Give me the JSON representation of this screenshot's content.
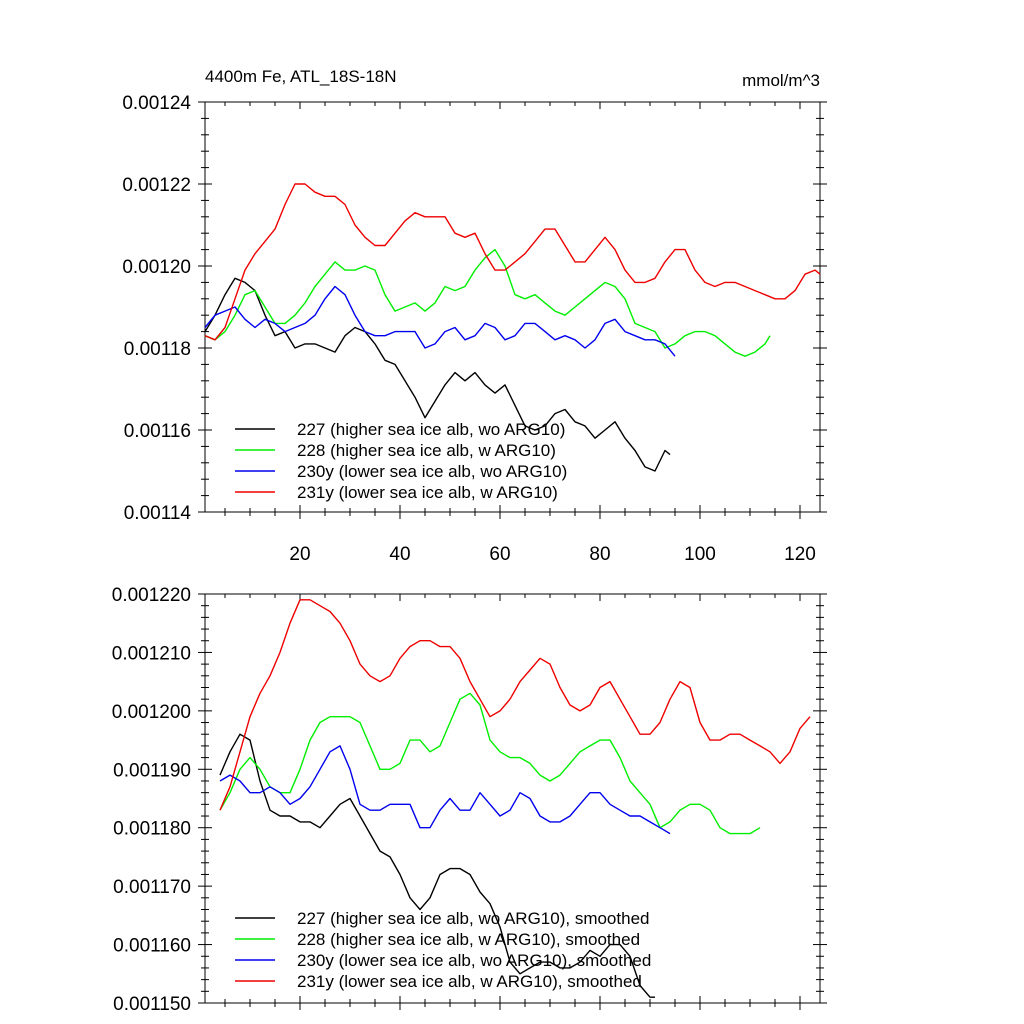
{
  "chart_data": [
    {
      "type": "line",
      "title": "4400m Fe, ATL_18S-18N",
      "units": "mmol/m^3",
      "xlabel": "",
      "ylabel": "",
      "xlim": [
        1,
        124
      ],
      "ylim": [
        0.00114,
        0.00124
      ],
      "x_ticks": [
        20,
        40,
        60,
        80,
        100,
        120
      ],
      "y_ticks": [
        "0.00114",
        "0.00116",
        "0.00118",
        "0.00120",
        "0.00122",
        "0.00124"
      ],
      "legend_position": "bottom-left",
      "series": [
        {
          "name": "227 (higher sea ice alb, wo ARG10)",
          "color": "#000000",
          "x": [
            1,
            3,
            5,
            7,
            9,
            11,
            13,
            15,
            17,
            19,
            21,
            23,
            25,
            27,
            29,
            31,
            33,
            35,
            37,
            39,
            41,
            43,
            45,
            47,
            49,
            51,
            53,
            55,
            57,
            59,
            61,
            63,
            65,
            67,
            69,
            71,
            73,
            75,
            77,
            79,
            81,
            83,
            85,
            87,
            89,
            91,
            93,
            94
          ],
          "values": [
            0.001184,
            0.001188,
            0.001193,
            0.001197,
            0.001196,
            0.001194,
            0.001188,
            0.001183,
            0.001184,
            0.00118,
            0.001181,
            0.001181,
            0.00118,
            0.001179,
            0.001183,
            0.001185,
            0.001184,
            0.001181,
            0.001177,
            0.001176,
            0.001172,
            0.001168,
            0.001163,
            0.001167,
            0.001171,
            0.001174,
            0.001172,
            0.001174,
            0.001171,
            0.001169,
            0.001171,
            0.001166,
            0.001161,
            0.00116,
            0.001161,
            0.001164,
            0.001165,
            0.001162,
            0.001161,
            0.001158,
            0.00116,
            0.001162,
            0.001158,
            0.001155,
            0.001151,
            0.00115,
            0.001155,
            0.001154
          ]
        },
        {
          "name": "228 (higher sea ice alb, w ARG10)",
          "color": "#00ee00",
          "x": [
            1,
            3,
            5,
            7,
            9,
            11,
            13,
            15,
            17,
            19,
            21,
            23,
            25,
            27,
            29,
            31,
            33,
            35,
            37,
            39,
            41,
            43,
            45,
            47,
            49,
            51,
            53,
            55,
            57,
            59,
            61,
            63,
            65,
            67,
            69,
            71,
            73,
            75,
            77,
            79,
            81,
            83,
            85,
            87,
            89,
            91,
            93,
            95,
            97,
            99,
            101,
            103,
            105,
            107,
            109,
            111,
            113,
            114
          ],
          "values": [
            0.001183,
            0.001182,
            0.001184,
            0.001188,
            0.001193,
            0.001194,
            0.00119,
            0.001186,
            0.001186,
            0.001188,
            0.001191,
            0.001195,
            0.001198,
            0.001201,
            0.001199,
            0.001199,
            0.0012,
            0.001199,
            0.001193,
            0.001189,
            0.00119,
            0.001191,
            0.001189,
            0.001191,
            0.001195,
            0.001194,
            0.001195,
            0.001199,
            0.001202,
            0.001204,
            0.0012,
            0.001193,
            0.001192,
            0.001193,
            0.001191,
            0.001189,
            0.001188,
            0.00119,
            0.001192,
            0.001194,
            0.001196,
            0.001195,
            0.001192,
            0.001186,
            0.001185,
            0.001184,
            0.00118,
            0.001181,
            0.001183,
            0.001184,
            0.001184,
            0.001183,
            0.001181,
            0.001179,
            0.001178,
            0.001179,
            0.001181,
            0.001183
          ]
        },
        {
          "name": "230y (lower sea ice alb, wo ARG10)",
          "color": "#0000ee",
          "x": [
            1,
            3,
            5,
            7,
            9,
            11,
            13,
            15,
            17,
            19,
            21,
            23,
            25,
            27,
            29,
            31,
            33,
            35,
            37,
            39,
            41,
            43,
            45,
            47,
            49,
            51,
            53,
            55,
            57,
            59,
            61,
            63,
            65,
            67,
            69,
            71,
            73,
            75,
            77,
            79,
            81,
            83,
            85,
            87,
            89,
            91,
            93,
            95
          ],
          "values": [
            0.001185,
            0.001188,
            0.001189,
            0.00119,
            0.001187,
            0.001185,
            0.001187,
            0.001186,
            0.001184,
            0.001185,
            0.001186,
            0.001188,
            0.001192,
            0.001195,
            0.001193,
            0.001188,
            0.001184,
            0.001183,
            0.001183,
            0.001184,
            0.001184,
            0.001184,
            0.00118,
            0.001181,
            0.001184,
            0.001185,
            0.001182,
            0.001183,
            0.001186,
            0.001185,
            0.001182,
            0.001183,
            0.001186,
            0.001186,
            0.001184,
            0.001182,
            0.001183,
            0.001182,
            0.00118,
            0.001182,
            0.001186,
            0.001187,
            0.001184,
            0.001183,
            0.001182,
            0.001182,
            0.001181,
            0.001178
          ]
        },
        {
          "name": "231y (lower sea ice alb, w ARG10)",
          "color": "#ee0000",
          "x": [
            1,
            3,
            5,
            7,
            9,
            11,
            13,
            15,
            17,
            19,
            21,
            23,
            25,
            27,
            29,
            31,
            33,
            35,
            37,
            39,
            41,
            43,
            45,
            47,
            49,
            51,
            53,
            55,
            57,
            59,
            61,
            63,
            65,
            67,
            69,
            71,
            73,
            75,
            77,
            79,
            81,
            83,
            85,
            87,
            89,
            91,
            93,
            95,
            97,
            99,
            101,
            103,
            105,
            107,
            109,
            111,
            113,
            115,
            117,
            119,
            121,
            123,
            124
          ],
          "values": [
            0.001183,
            0.001182,
            0.001185,
            0.001192,
            0.001199,
            0.001203,
            0.001206,
            0.001209,
            0.001215,
            0.00122,
            0.00122,
            0.001218,
            0.001217,
            0.001217,
            0.001215,
            0.00121,
            0.001207,
            0.001205,
            0.001205,
            0.001208,
            0.001211,
            0.001213,
            0.001212,
            0.001212,
            0.001212,
            0.001208,
            0.001207,
            0.001208,
            0.001203,
            0.001199,
            0.001199,
            0.001201,
            0.001203,
            0.001206,
            0.001209,
            0.001209,
            0.001205,
            0.001201,
            0.001201,
            0.001204,
            0.001207,
            0.001204,
            0.001199,
            0.001196,
            0.001196,
            0.001197,
            0.001201,
            0.001204,
            0.001204,
            0.001199,
            0.001196,
            0.001195,
            0.001196,
            0.001196,
            0.001195,
            0.001194,
            0.001193,
            0.001192,
            0.001192,
            0.001194,
            0.001198,
            0.001199,
            0.001198
          ]
        }
      ]
    },
    {
      "type": "line",
      "title": "",
      "xlabel": "",
      "ylabel": "",
      "xlim": [
        1,
        124
      ],
      "ylim": [
        0.00115,
        0.00122
      ],
      "x_ticks": [
        20,
        40,
        60,
        80,
        100,
        120
      ],
      "y_ticks": [
        "0.001150",
        "0.001160",
        "0.001170",
        "0.001180",
        "0.001190",
        "0.001200",
        "0.001210",
        "0.001220"
      ],
      "legend_position": "bottom-left",
      "series": [
        {
          "name": "227 (higher sea ice alb, wo ARG10), smoothed",
          "color": "#000000",
          "x": [
            4,
            6,
            8,
            10,
            12,
            14,
            16,
            18,
            20,
            22,
            24,
            26,
            28,
            30,
            32,
            34,
            36,
            38,
            40,
            42,
            44,
            46,
            48,
            50,
            52,
            54,
            56,
            58,
            60,
            62,
            64,
            66,
            68,
            70,
            72,
            74,
            76,
            78,
            80,
            82,
            84,
            86,
            88,
            90,
            91
          ],
          "values": [
            0.001189,
            0.001193,
            0.001196,
            0.001195,
            0.001188,
            0.001183,
            0.001182,
            0.001182,
            0.001181,
            0.001181,
            0.00118,
            0.001182,
            0.001184,
            0.001185,
            0.001182,
            0.001179,
            0.001176,
            0.001175,
            0.001172,
            0.001168,
            0.001166,
            0.001168,
            0.001172,
            0.001173,
            0.001173,
            0.001172,
            0.001169,
            0.001167,
            0.001163,
            0.001157,
            0.001155,
            0.001156,
            0.001157,
            0.001157,
            0.001156,
            0.001156,
            0.001157,
            0.001159,
            0.001158,
            0.00116,
            0.00116,
            0.001158,
            0.001153,
            0.001151,
            0.001151
          ]
        },
        {
          "name": "228 (higher sea ice alb, w ARG10), smoothed",
          "color": "#00ee00",
          "x": [
            4,
            6,
            8,
            10,
            12,
            14,
            16,
            18,
            20,
            22,
            24,
            26,
            28,
            30,
            32,
            34,
            36,
            38,
            40,
            42,
            44,
            46,
            48,
            50,
            52,
            54,
            56,
            58,
            60,
            62,
            64,
            66,
            68,
            70,
            72,
            74,
            76,
            78,
            80,
            82,
            84,
            86,
            88,
            90,
            92,
            94,
            96,
            98,
            100,
            102,
            104,
            106,
            108,
            110,
            112
          ],
          "values": [
            0.001183,
            0.001186,
            0.00119,
            0.001192,
            0.00119,
            0.001187,
            0.001186,
            0.001186,
            0.00119,
            0.001195,
            0.001198,
            0.001199,
            0.001199,
            0.001199,
            0.001198,
            0.001194,
            0.00119,
            0.00119,
            0.001191,
            0.001195,
            0.001195,
            0.001193,
            0.001194,
            0.001198,
            0.001202,
            0.001203,
            0.001201,
            0.001195,
            0.001193,
            0.001192,
            0.001192,
            0.001191,
            0.001189,
            0.001188,
            0.001189,
            0.001191,
            0.001193,
            0.001194,
            0.001195,
            0.001195,
            0.001192,
            0.001188,
            0.001186,
            0.001184,
            0.00118,
            0.001181,
            0.001183,
            0.001184,
            0.001184,
            0.001183,
            0.00118,
            0.001179,
            0.001179,
            0.001179,
            0.00118
          ]
        },
        {
          "name": "230y (lower sea ice alb, wo ARG10), smoothed",
          "color": "#0000ee",
          "x": [
            4,
            6,
            8,
            10,
            12,
            14,
            16,
            18,
            20,
            22,
            24,
            26,
            28,
            30,
            32,
            34,
            36,
            38,
            40,
            42,
            44,
            46,
            48,
            50,
            52,
            54,
            56,
            58,
            60,
            62,
            64,
            66,
            68,
            70,
            72,
            74,
            76,
            78,
            80,
            82,
            84,
            86,
            88,
            90,
            92,
            94
          ],
          "values": [
            0.001188,
            0.001189,
            0.001188,
            0.001186,
            0.001186,
            0.001187,
            0.001186,
            0.001184,
            0.001185,
            0.001187,
            0.00119,
            0.001193,
            0.001194,
            0.00119,
            0.001184,
            0.001183,
            0.001183,
            0.001184,
            0.001184,
            0.001184,
            0.00118,
            0.00118,
            0.001183,
            0.001185,
            0.001183,
            0.001183,
            0.001186,
            0.001184,
            0.001182,
            0.001183,
            0.001186,
            0.001185,
            0.001182,
            0.001181,
            0.001181,
            0.001182,
            0.001184,
            0.001186,
            0.001186,
            0.001184,
            0.001183,
            0.001182,
            0.001182,
            0.001181,
            0.00118,
            0.001179
          ]
        },
        {
          "name": "231y (lower sea ice alb, w ARG10), smoothed",
          "color": "#ee0000",
          "x": [
            4,
            6,
            8,
            10,
            12,
            14,
            16,
            18,
            20,
            22,
            24,
            26,
            28,
            30,
            32,
            34,
            36,
            38,
            40,
            42,
            44,
            46,
            48,
            50,
            52,
            54,
            56,
            58,
            60,
            62,
            64,
            66,
            68,
            70,
            72,
            74,
            76,
            78,
            80,
            82,
            84,
            86,
            88,
            90,
            92,
            94,
            96,
            98,
            100,
            102,
            104,
            106,
            108,
            110,
            112,
            114,
            116,
            118,
            120,
            122
          ],
          "values": [
            0.001183,
            0.001187,
            0.001193,
            0.001199,
            0.001203,
            0.001206,
            0.00121,
            0.001215,
            0.001219,
            0.001219,
            0.001218,
            0.001217,
            0.001215,
            0.001212,
            0.001208,
            0.001206,
            0.001205,
            0.001206,
            0.001209,
            0.001211,
            0.001212,
            0.001212,
            0.001211,
            0.001211,
            0.001209,
            0.001205,
            0.001202,
            0.001199,
            0.0012,
            0.001202,
            0.001205,
            0.001207,
            0.001209,
            0.001208,
            0.001204,
            0.001201,
            0.0012,
            0.001201,
            0.001204,
            0.001205,
            0.001202,
            0.001199,
            0.001196,
            0.001196,
            0.001198,
            0.001202,
            0.001205,
            0.001204,
            0.001198,
            0.001195,
            0.001195,
            0.001196,
            0.001196,
            0.001195,
            0.001194,
            0.001193,
            0.001191,
            0.001193,
            0.001197,
            0.001199
          ]
        }
      ]
    }
  ]
}
